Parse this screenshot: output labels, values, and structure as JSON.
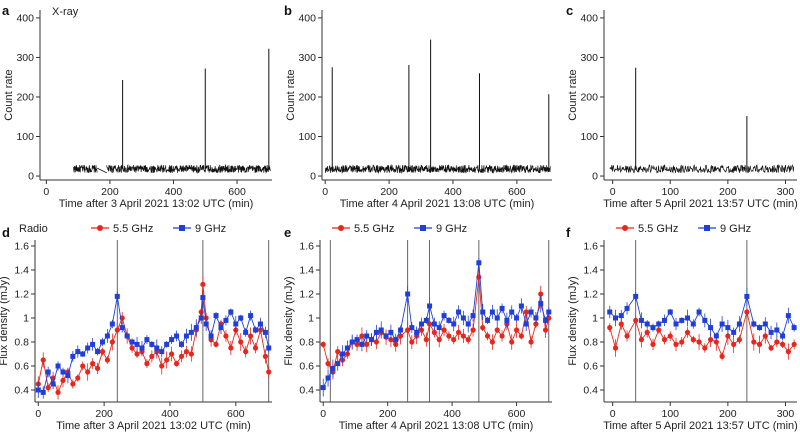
{
  "bands": {
    "xray": "X-ray",
    "radio": "Radio"
  },
  "colors": {
    "xray": "#111111",
    "ghz55": "#e8261c",
    "ghz9": "#1f3fd8",
    "flare": "#555555",
    "axis": "#333333"
  },
  "chart_data": [
    {
      "panel": "a",
      "type": "line",
      "band": "X-ray",
      "xlabel": "Time after 3 April 2021 13:02 UTC (min)",
      "ylabel": "Count rate",
      "xlim": [
        -20,
        710
      ],
      "ylim": [
        -10,
        420
      ],
      "xticks": [
        0,
        200,
        400,
        600
      ],
      "yticks": [
        0,
        100,
        200,
        300,
        400
      ],
      "baseline": 18,
      "noise": 10,
      "segments": [
        [
          85,
          160
        ],
        [
          190,
          705
        ]
      ],
      "gap_line": [
        [
          160,
          20
        ],
        [
          190,
          8
        ]
      ],
      "flares": [
        [
          240,
          243
        ],
        [
          500,
          272
        ],
        [
          700,
          322
        ]
      ]
    },
    {
      "panel": "b",
      "type": "line",
      "band": "",
      "xlabel": "Time after 4 April 2021 13:08 UTC (min)",
      "ylabel": "Count rate",
      "xlim": [
        -10,
        710
      ],
      "ylim": [
        -10,
        420
      ],
      "xticks": [
        0,
        200,
        400,
        600
      ],
      "yticks": [
        0,
        100,
        200,
        300,
        400
      ],
      "baseline": 18,
      "noise": 10,
      "segments": [
        [
          0,
          705
        ]
      ],
      "gap_line": null,
      "flares": [
        [
          22,
          275
        ],
        [
          262,
          281
        ],
        [
          330,
          345
        ],
        [
          483,
          260
        ],
        [
          700,
          207
        ]
      ]
    },
    {
      "panel": "c",
      "type": "line",
      "band": "",
      "xlabel": "Time after 5 April 2021 13:57 UTC (min)",
      "ylabel": "Count rate",
      "xlim": [
        -15,
        320
      ],
      "ylim": [
        -10,
        420
      ],
      "xticks": [
        0,
        100,
        200,
        300
      ],
      "yticks": [
        0,
        100,
        200,
        300,
        400
      ],
      "baseline": 18,
      "noise": 10,
      "segments": [
        [
          -5,
          315
        ]
      ],
      "gap_line": null,
      "flares": [
        [
          40,
          274
        ],
        [
          233,
          152
        ]
      ]
    },
    {
      "panel": "d",
      "type": "scatter",
      "band": "Radio",
      "xlabel": "Time after 3 April 2021 13:02 UTC (min)",
      "ylabel": "Flux density (mJy)",
      "xlim": [
        -10,
        710
      ],
      "ylim": [
        0.3,
        1.65
      ],
      "xticks": [
        0,
        200,
        400,
        600
      ],
      "yticks": [
        0.4,
        0.6,
        0.8,
        1.0,
        1.2,
        1.4,
        1.6
      ],
      "flare_lines": [
        240,
        500,
        700
      ],
      "series": [
        {
          "name": "5.5 GHz",
          "x": [
            0,
            15,
            30,
            45,
            60,
            75,
            90,
            105,
            120,
            135,
            150,
            165,
            180,
            195,
            210,
            225,
            240,
            255,
            270,
            285,
            300,
            315,
            330,
            345,
            360,
            375,
            390,
            405,
            420,
            435,
            450,
            465,
            480,
            495,
            500,
            510,
            525,
            540,
            555,
            570,
            585,
            600,
            615,
            630,
            645,
            660,
            675,
            690,
            700
          ],
          "y": [
            0.45,
            0.65,
            0.42,
            0.5,
            0.38,
            0.48,
            0.55,
            0.45,
            0.5,
            0.6,
            0.55,
            0.62,
            0.58,
            0.72,
            0.65,
            0.8,
            0.9,
            1.0,
            0.85,
            0.75,
            0.7,
            0.72,
            0.62,
            0.68,
            0.72,
            0.6,
            0.65,
            0.7,
            0.62,
            0.68,
            0.72,
            0.7,
            0.9,
            1.05,
            1.28,
            1.0,
            0.82,
            0.78,
            0.95,
            0.85,
            0.75,
            0.9,
            0.8,
            0.72,
            0.85,
            0.75,
            0.9,
            0.68,
            0.55
          ]
        },
        {
          "name": "9 GHz",
          "x": [
            0,
            15,
            30,
            45,
            60,
            75,
            90,
            105,
            120,
            135,
            150,
            165,
            180,
            195,
            210,
            225,
            240,
            255,
            270,
            285,
            300,
            315,
            330,
            345,
            360,
            375,
            390,
            405,
            420,
            435,
            450,
            465,
            480,
            495,
            500,
            510,
            525,
            540,
            555,
            570,
            585,
            600,
            615,
            630,
            645,
            660,
            675,
            690,
            700
          ],
          "y": [
            0.4,
            0.38,
            0.55,
            0.45,
            0.6,
            0.55,
            0.52,
            0.68,
            0.72,
            0.7,
            0.75,
            0.78,
            0.72,
            0.8,
            0.85,
            0.95,
            1.18,
            0.92,
            0.85,
            0.8,
            0.78,
            0.75,
            0.82,
            0.78,
            0.75,
            0.72,
            0.78,
            0.82,
            0.85,
            0.78,
            0.85,
            0.88,
            0.92,
            1.0,
            1.17,
            0.95,
            0.85,
            1.02,
            0.92,
            0.98,
            1.05,
            0.95,
            1.0,
            0.88,
            1.02,
            0.9,
            0.95,
            0.88,
            0.75
          ]
        }
      ]
    },
    {
      "panel": "e",
      "type": "scatter",
      "band": "",
      "xlabel": "Time after 4 April 2021 13:08 UTC (min)",
      "ylabel": "Flux density (mJy)",
      "xlim": [
        -10,
        710
      ],
      "ylim": [
        0.3,
        1.65
      ],
      "xticks": [
        0,
        200,
        400,
        600
      ],
      "yticks": [
        0.4,
        0.6,
        0.8,
        1.0,
        1.2,
        1.4,
        1.6
      ],
      "flare_lines": [
        22,
        262,
        330,
        483,
        700
      ],
      "series": [
        {
          "name": "5.5 GHz",
          "x": [
            0,
            15,
            30,
            45,
            60,
            75,
            90,
            105,
            120,
            135,
            150,
            165,
            180,
            195,
            210,
            225,
            240,
            262,
            275,
            290,
            305,
            320,
            330,
            345,
            360,
            375,
            390,
            405,
            420,
            435,
            450,
            465,
            483,
            495,
            510,
            525,
            540,
            555,
            570,
            585,
            600,
            615,
            630,
            645,
            660,
            675,
            690,
            700
          ],
          "y": [
            0.78,
            0.62,
            0.55,
            0.72,
            0.65,
            0.7,
            0.8,
            0.78,
            0.85,
            0.78,
            0.82,
            0.8,
            0.88,
            0.84,
            0.82,
            0.78,
            0.85,
            0.9,
            0.8,
            0.85,
            0.9,
            0.82,
            0.95,
            0.88,
            0.82,
            0.9,
            0.85,
            0.82,
            0.88,
            0.85,
            0.82,
            0.9,
            1.34,
            0.92,
            0.85,
            0.8,
            0.9,
            0.85,
            0.95,
            0.8,
            0.9,
            0.85,
            1.05,
            0.8,
            0.95,
            1.2,
            0.9,
            1.0
          ]
        },
        {
          "name": "9 GHz",
          "x": [
            0,
            15,
            30,
            45,
            60,
            75,
            90,
            105,
            120,
            135,
            150,
            165,
            180,
            195,
            210,
            225,
            240,
            262,
            275,
            290,
            305,
            320,
            330,
            345,
            360,
            375,
            390,
            405,
            420,
            435,
            450,
            465,
            483,
            495,
            510,
            525,
            540,
            555,
            570,
            585,
            600,
            615,
            630,
            645,
            660,
            675,
            690,
            700
          ],
          "y": [
            0.42,
            0.5,
            0.58,
            0.62,
            0.7,
            0.75,
            0.8,
            0.82,
            0.78,
            0.85,
            0.82,
            0.88,
            0.9,
            0.85,
            0.88,
            0.82,
            0.9,
            1.2,
            0.92,
            0.88,
            0.95,
            0.98,
            1.1,
            0.95,
            0.92,
            1.02,
            0.98,
            0.95,
            1.05,
            1.0,
            0.95,
            1.02,
            1.46,
            1.05,
            0.98,
            1.05,
            1.0,
            1.08,
            0.98,
            1.05,
            1.0,
            1.1,
            0.95,
            1.05,
            1.0,
            1.12,
            0.98,
            1.05
          ]
        }
      ]
    },
    {
      "panel": "f",
      "type": "scatter",
      "band": "",
      "xlabel": "Time after 5 April 2021 13:57 UTC (min)",
      "ylabel": "Flux density (mJy)",
      "xlim": [
        -15,
        320
      ],
      "ylim": [
        0.3,
        1.65
      ],
      "xticks": [
        0,
        100,
        200,
        300
      ],
      "yticks": [
        0.4,
        0.6,
        0.8,
        1.0,
        1.2,
        1.4,
        1.6
      ],
      "flare_lines": [
        40,
        233
      ],
      "series": [
        {
          "name": "5.5 GHz",
          "x": [
            -5,
            5,
            15,
            25,
            40,
            50,
            60,
            70,
            80,
            90,
            100,
            110,
            120,
            130,
            140,
            150,
            160,
            170,
            180,
            190,
            200,
            210,
            220,
            233,
            245,
            255,
            265,
            275,
            285,
            295,
            305,
            315
          ],
          "y": [
            0.92,
            0.75,
            0.95,
            0.85,
            0.98,
            0.82,
            0.88,
            0.78,
            0.9,
            0.82,
            0.85,
            0.78,
            0.8,
            0.88,
            0.82,
            0.8,
            0.75,
            0.82,
            0.8,
            0.68,
            0.85,
            0.78,
            0.82,
            1.05,
            0.8,
            0.78,
            0.85,
            0.75,
            0.8,
            0.78,
            0.72,
            0.78
          ]
        },
        {
          "name": "9 GHz",
          "x": [
            -5,
            5,
            15,
            25,
            40,
            50,
            60,
            70,
            80,
            90,
            100,
            110,
            120,
            130,
            140,
            150,
            160,
            170,
            180,
            190,
            200,
            210,
            220,
            233,
            245,
            255,
            265,
            275,
            285,
            295,
            305,
            315
          ],
          "y": [
            1.05,
            1.0,
            1.02,
            1.08,
            1.18,
            0.98,
            0.95,
            0.92,
            0.95,
            0.98,
            1.05,
            0.95,
            0.98,
            1.0,
            0.95,
            1.05,
            0.98,
            0.92,
            0.85,
            0.95,
            0.92,
            0.88,
            0.95,
            1.18,
            0.95,
            0.92,
            0.95,
            0.88,
            0.9,
            0.85,
            1.02,
            0.92
          ]
        }
      ]
    }
  ]
}
